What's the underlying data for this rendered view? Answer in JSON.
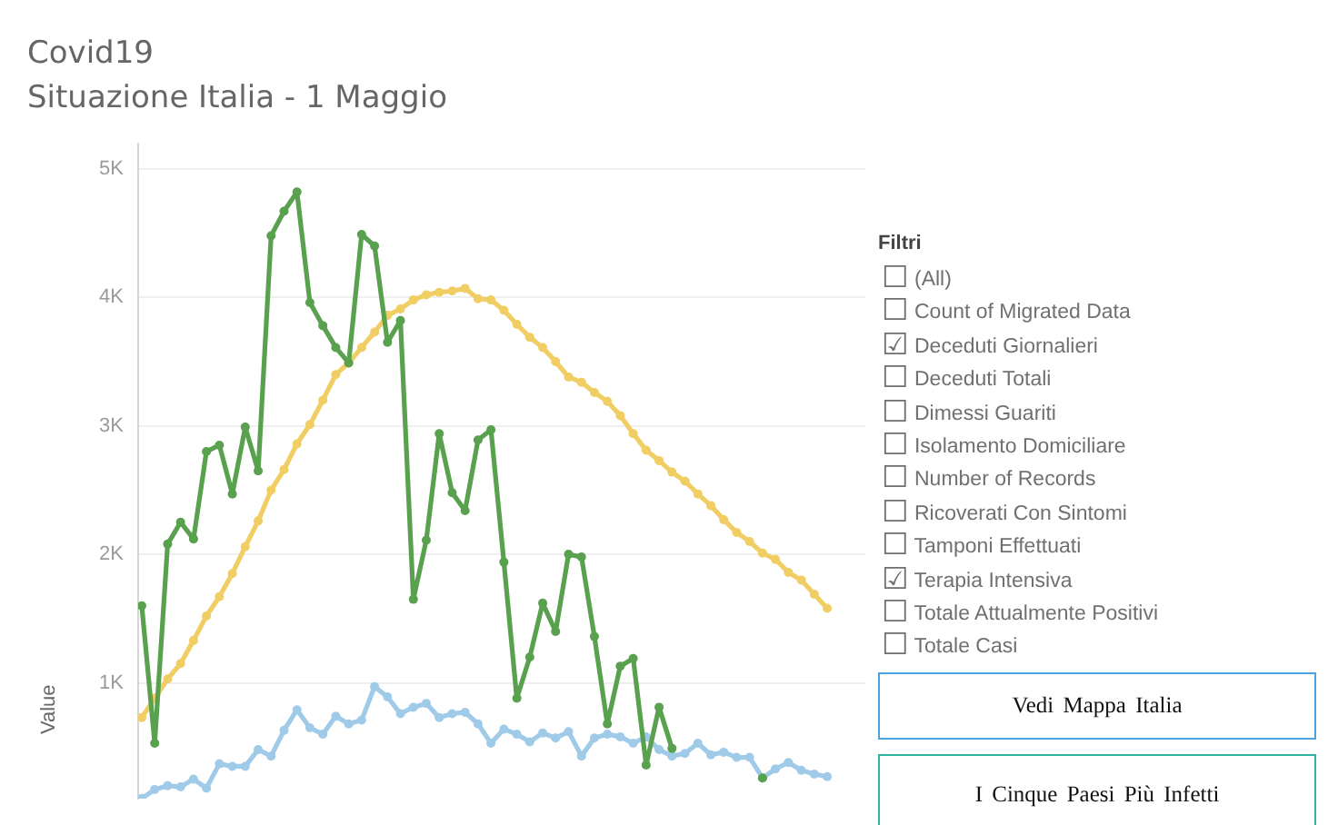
{
  "chart_data": {
    "type": "line",
    "title": "Covid19",
    "subtitle": "Situazione Italia - 1 Maggio",
    "ylabel": "Value",
    "annotations": [
      "Filtri",
      "☐ (All)",
      "☐ Count of Migrated Data",
      "☑ Deceduti Giornalieri",
      "☐ Deceduti Totali",
      "☐ Dimessi Guariti",
      "☐ Isolamento Domiciliare",
      "☐ Number of Records",
      "☐ Ricoverati Con Sintomi",
      "☐ Tamponi Effettuati",
      "☑ Terapia Intensiva",
      "☐ Totale Attualmente Positivi",
      "☐ Totale Casi",
      "Vedi Mappa Italia",
      "I Cinque Paesi Più Infetti"
    ],
    "categories": [
      null,
      null,
      null,
      null,
      null,
      null,
      null,
      null,
      null,
      null,
      null,
      null,
      null,
      null,
      null,
      null,
      null,
      null,
      null,
      null,
      null,
      null,
      null,
      null,
      null,
      null,
      null,
      null,
      null,
      null,
      null,
      null,
      null,
      null,
      null,
      null,
      null,
      null,
      null,
      null,
      null,
      null,
      null,
      null,
      null,
      null,
      null,
      null,
      null,
      null,
      null,
      null,
      null,
      null
    ],
    "series": [
      {
        "color": "#59a14f",
        "values": [
          1600,
          530,
          2080,
          2250,
          2120,
          2800,
          2850,
          2470,
          2990,
          2650,
          4480,
          4670,
          4820,
          3960,
          3780,
          3610,
          3490,
          4490,
          4400,
          3650,
          3820,
          1650,
          2110,
          2940,
          2480,
          2340,
          2890,
          2970,
          1940,
          880,
          1200,
          1620,
          1400,
          2000,
          1980,
          1360,
          680,
          1130,
          1190,
          360,
          810,
          490,
          null,
          null,
          null,
          null,
          null,
          null,
          260,
          null,
          null,
          null,
          null,
          null
        ]
      },
      {
        "color": "#f1ce63",
        "values": [
          730,
          880,
          1030,
          1150,
          1330,
          1520,
          1670,
          1850,
          2060,
          2260,
          2500,
          2660,
          2860,
          3010,
          3200,
          3400,
          3490,
          3610,
          3730,
          3860,
          3910,
          3980,
          4020,
          4040,
          4050,
          4070,
          3990,
          3980,
          3900,
          3790,
          3690,
          3610,
          3500,
          3380,
          3340,
          3260,
          3190,
          3080,
          2940,
          2810,
          2730,
          2640,
          2570,
          2470,
          2380,
          2270,
          2170,
          2100,
          2010,
          1960,
          1860,
          1800,
          1690,
          1580
        ]
      },
      {
        "color": "#a0cbe8",
        "values": [
          100,
          170,
          200,
          190,
          250,
          180,
          370,
          350,
          350,
          480,
          430,
          630,
          790,
          650,
          600,
          740,
          680,
          710,
          970,
          890,
          760,
          810,
          840,
          730,
          760,
          770,
          680,
          530,
          640,
          600,
          540,
          610,
          570,
          620,
          430,
          570,
          600,
          580,
          530,
          580,
          480,
          430,
          450,
          530,
          440,
          460,
          420,
          420,
          260,
          330,
          380,
          320,
          290,
          270
        ]
      }
    ],
    "ylim": [
      100,
      5200
    ],
    "yticks": [
      {
        "value": 1000,
        "label": "1K"
      },
      {
        "value": 2000,
        "label": "2K"
      },
      {
        "value": 3000,
        "label": "3K"
      },
      {
        "value": 4000,
        "label": "4K"
      },
      {
        "value": 5000,
        "label": "5K"
      }
    ],
    "grid": "y",
    "marker": "circle",
    "line_style": "solid",
    "tick_labels": "y"
  }
}
